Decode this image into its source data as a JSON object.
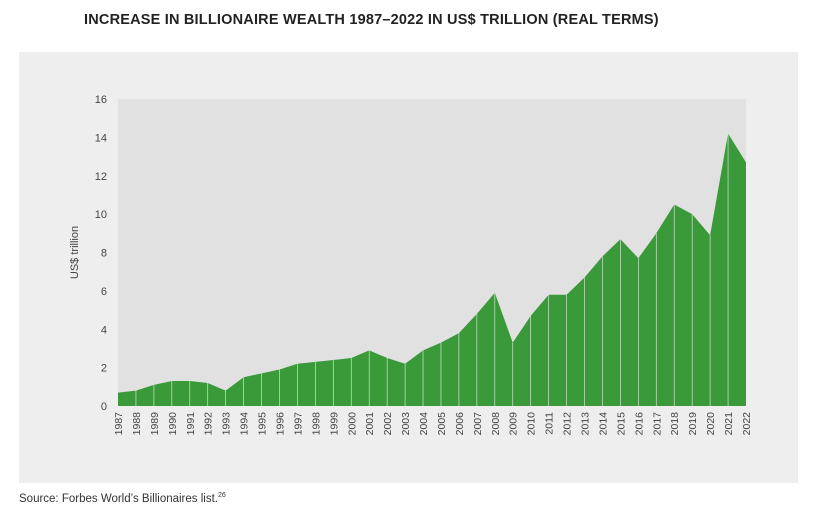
{
  "title": "INCREASE IN BILLIONAIRE WEALTH 1987–2022 IN US$ TRILLION (REAL TERMS)",
  "source": {
    "text": "Source: Forbes World’s Billionaires list.",
    "footnote": "26"
  },
  "colors": {
    "area": "#3a9a3a",
    "plot_bg": "#e1e1e1",
    "panel_bg": "#eeeeee"
  },
  "chart_data": {
    "type": "area",
    "title": "INCREASE IN BILLIONAIRE WEALTH 1987–2022 IN US$ TRILLION (REAL TERMS)",
    "xlabel": "",
    "ylabel": "US$ trillion",
    "ylim": [
      0,
      16
    ],
    "yticks": [
      0,
      2,
      4,
      6,
      8,
      10,
      12,
      14,
      16
    ],
    "grid": false,
    "x": [
      "1987",
      "1988",
      "1989",
      "1990",
      "1991",
      "1992",
      "1993",
      "1994",
      "1995",
      "1996",
      "1997",
      "1998",
      "1999",
      "2000",
      "2001",
      "2002",
      "2003",
      "2004",
      "2005",
      "2006",
      "2007",
      "2008",
      "2009",
      "2010",
      "2011",
      "2012",
      "2013",
      "2014",
      "2015",
      "2016",
      "2017",
      "2018",
      "2019",
      "2020",
      "2021",
      "2022"
    ],
    "series": [
      {
        "values": [
          0.7,
          0.8,
          1.1,
          1.3,
          1.3,
          1.2,
          0.8,
          1.5,
          1.7,
          1.9,
          2.2,
          2.3,
          2.4,
          2.5,
          2.9,
          2.5,
          2.2,
          2.9,
          3.3,
          3.8,
          4.8,
          5.9,
          3.3,
          4.7,
          5.8,
          5.8,
          6.7,
          7.8,
          8.7,
          7.7,
          9.0,
          10.5,
          10.0,
          8.9,
          14.2,
          12.7
        ]
      }
    ]
  }
}
